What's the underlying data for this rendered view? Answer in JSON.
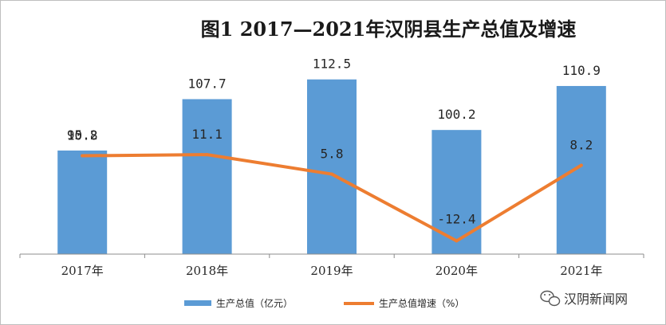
{
  "chart_data": {
    "type": "bar",
    "title": "图1 2017—2021年汉阴县生产总值及增速",
    "categories": [
      "2017年",
      "2018年",
      "2019年",
      "2020年",
      "2021年"
    ],
    "series": [
      {
        "name": "生产总值（亿元）",
        "type": "bar",
        "axis": "left",
        "color": "#5b9bd5",
        "values": [
          95.2,
          107.7,
          112.5,
          100.2,
          110.9
        ]
      },
      {
        "name": "生产总值增速（%）",
        "type": "line",
        "axis": "right",
        "color": "#ed7d31",
        "values": [
          10.8,
          11.1,
          5.8,
          -12.4,
          8.2
        ]
      }
    ],
    "y_left_range": [
      70,
      120
    ],
    "y_right_range": [
      -16,
      40
    ],
    "grid": false,
    "legend": "bottom"
  },
  "watermark": {
    "text": "汉阴新闻网",
    "icon": "wechat-icon"
  }
}
